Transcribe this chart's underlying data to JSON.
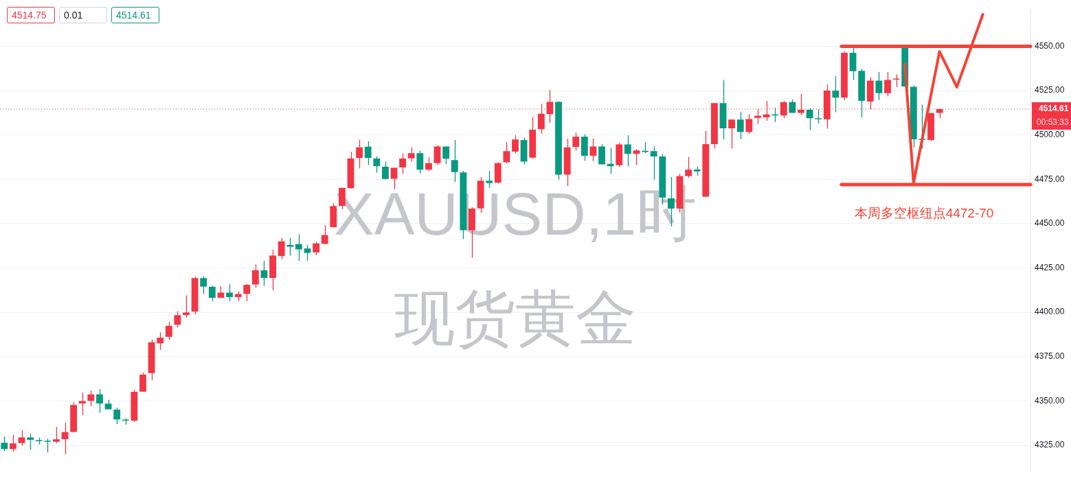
{
  "chart_data": {
    "type": "candlestick",
    "title": "XAUUSD,1时",
    "subtitle": "现货黄金",
    "categories": [
      null,
      null,
      null,
      null,
      null,
      null,
      null,
      null,
      null,
      null,
      null,
      null,
      null,
      null,
      null,
      null,
      null,
      null,
      null,
      null,
      null,
      null,
      null,
      null,
      null,
      null,
      null,
      null,
      null,
      null,
      null,
      null,
      null,
      null,
      null,
      null,
      null,
      null,
      null,
      null,
      null,
      null,
      null,
      null,
      null,
      null,
      null,
      null,
      null,
      null,
      null,
      null,
      null,
      null,
      null,
      null,
      null,
      null,
      null,
      null,
      null,
      null,
      null,
      null,
      null,
      null,
      null,
      null,
      null,
      null,
      null,
      null,
      null,
      null,
      null,
      null,
      null,
      null,
      null,
      null,
      null,
      null,
      null,
      null,
      null,
      null,
      null,
      null,
      null,
      null,
      null,
      null,
      null,
      null,
      null,
      null,
      null,
      null,
      null,
      null,
      null,
      null,
      null,
      null,
      null,
      null,
      null,
      null,
      null,
      null,
      null,
      null,
      null,
      null,
      null,
      null,
      null,
      null,
      null
    ],
    "ohlc": [
      [
        4326.5,
        4330.0,
        4321.8,
        4322.9
      ],
      [
        4322.9,
        4331.0,
        4321.4,
        4326.1
      ],
      [
        4326.3,
        4333.6,
        4324.8,
        4329.5
      ],
      [
        4329.5,
        4331.7,
        4322.5,
        4328.1
      ],
      [
        4327.5,
        4329.5,
        4325.5,
        4327.3
      ],
      [
        4327.2,
        4328.7,
        4321.0,
        4327.0
      ],
      [
        4327.0,
        4335.4,
        4326.2,
        4328.4
      ],
      [
        4328.5,
        4337.7,
        4319.9,
        4332.5
      ],
      [
        4332.6,
        4349.2,
        4332.2,
        4347.7
      ],
      [
        4348.6,
        4354.8,
        4342.1,
        4350.0
      ],
      [
        4350.1,
        4355.9,
        4347.1,
        4353.7
      ],
      [
        4353.7,
        4356.7,
        4343.4,
        4348.6
      ],
      [
        4348.5,
        4350.7,
        4345.3,
        4345.3
      ],
      [
        4345.1,
        4346.2,
        4337.0,
        4339.6
      ],
      [
        4339.3,
        4340.3,
        4336.7,
        4338.9
      ],
      [
        4338.9,
        4356.3,
        4338.2,
        4355.2
      ],
      [
        4355.3,
        4366.0,
        4355.3,
        4364.9
      ],
      [
        4365.7,
        4384.6,
        4361.6,
        4383.1
      ],
      [
        4382.5,
        4388.7,
        4378.8,
        4385.7
      ],
      [
        4386.2,
        4394.7,
        4384.4,
        4392.4
      ],
      [
        4393.0,
        4400.6,
        4391.5,
        4398.4
      ],
      [
        4398.5,
        4409.6,
        4397.0,
        4399.9
      ],
      [
        4400.4,
        4420.0,
        4398.9,
        4419.3
      ],
      [
        4419.3,
        4420.4,
        4410.4,
        4414.5
      ],
      [
        4414.4,
        4414.8,
        4406.3,
        4408.2
      ],
      [
        4408.2,
        4414.8,
        4408.2,
        4411.1
      ],
      [
        4411.1,
        4415.9,
        4406.3,
        4408.6
      ],
      [
        4408.6,
        4411.8,
        4406.3,
        4410.3
      ],
      [
        4410.4,
        4415.9,
        4406.3,
        4415.5
      ],
      [
        4415.7,
        4427.1,
        4413.8,
        4423.7
      ],
      [
        4423.7,
        4429.0,
        4414.9,
        4419.4
      ],
      [
        4419.4,
        4435.3,
        4412.3,
        4432.0
      ],
      [
        4431.7,
        4442.0,
        4430.0,
        4440.0
      ],
      [
        4438.0,
        4442.0,
        4432.0,
        4437.0
      ],
      [
        4438.5,
        4444.0,
        4429.0,
        4435.5
      ],
      [
        4436.0,
        4438.0,
        4429.0,
        4433.5
      ],
      [
        4433.8,
        4439.7,
        4432.1,
        4438.9
      ],
      [
        4438.6,
        4449.1,
        4438.3,
        4443.6
      ],
      [
        4448.0,
        4461.5,
        4447.8,
        4459.9
      ],
      [
        4460.0,
        4470.2,
        4458.2,
        4470.2
      ],
      [
        4470.0,
        4490.5,
        4469.7,
        4486.7
      ],
      [
        4487.0,
        4497.4,
        4481.2,
        4493.0
      ],
      [
        4493.4,
        4496.4,
        4483.0,
        4487.0
      ],
      [
        4486.7,
        4488.0,
        4478.7,
        4482.4
      ],
      [
        4482.1,
        4485.1,
        4474.9,
        4475.2
      ],
      [
        4475.3,
        4481.5,
        4469.3,
        4481.5
      ],
      [
        4481.7,
        4489.7,
        4478.3,
        4486.7
      ],
      [
        4486.8,
        4493.0,
        4484.9,
        4489.7
      ],
      [
        4489.7,
        4491.2,
        4478.3,
        4480.4
      ],
      [
        4480.4,
        4487.4,
        4479.5,
        4484.1
      ],
      [
        4484.1,
        4494.3,
        4483.0,
        4493.5
      ],
      [
        4493.5,
        4493.5,
        4483.6,
        4486.6
      ],
      [
        4485.9,
        4497.2,
        4473.5,
        4479.1
      ],
      [
        4478.9,
        4479.8,
        4441.5,
        4446.3
      ],
      [
        4446.3,
        4459.3,
        4430.8,
        4458.5
      ],
      [
        4458.6,
        4476.3,
        4456.0,
        4474.2
      ],
      [
        4474.2,
        4479.6,
        4470.2,
        4472.9
      ],
      [
        4473.1,
        4484.7,
        4472.6,
        4484.1
      ],
      [
        4484.6,
        4496.1,
        4484.1,
        4490.9
      ],
      [
        4490.6,
        4499.8,
        4489.6,
        4497.5
      ],
      [
        4497.2,
        4498.5,
        4483.4,
        4485.0
      ],
      [
        4487.2,
        4510.1,
        4486.7,
        4503.0
      ],
      [
        4503.3,
        4517.5,
        4500.7,
        4512.0
      ],
      [
        4511.8,
        4525.5,
        4506.9,
        4518.7
      ],
      [
        4518.7,
        4519.0,
        4474.9,
        4477.6
      ],
      [
        4477.6,
        4497.8,
        4471.3,
        4493.0
      ],
      [
        4493.2,
        4501.3,
        4491.1,
        4499.0
      ],
      [
        4499.0,
        4500.4,
        4485.4,
        4488.3
      ],
      [
        4488.3,
        4497.9,
        4485.4,
        4493.5
      ],
      [
        4493.5,
        4494.8,
        4483.4,
        4483.4
      ],
      [
        4483.7,
        4492.7,
        4478.1,
        4482.4
      ],
      [
        4483.0,
        4495.6,
        4482.0,
        4494.7
      ],
      [
        4494.7,
        4499.8,
        4482.4,
        4489.3
      ],
      [
        4489.3,
        4491.9,
        4483.0,
        4491.3
      ],
      [
        4491.1,
        4495.9,
        4489.8,
        4490.4
      ],
      [
        4490.9,
        4493.5,
        4474.9,
        4487.9
      ],
      [
        4487.9,
        4489.2,
        4460.8,
        4464.7
      ],
      [
        4464.3,
        4476.3,
        4448.4,
        4458.5
      ],
      [
        4458.5,
        4478.1,
        4456.3,
        4476.8
      ],
      [
        4476.8,
        4487.6,
        4475.9,
        4480.4
      ],
      [
        4480.5,
        4482.2,
        4477.1,
        4479.5
      ],
      [
        4465.2,
        4502.3,
        4465.2,
        4494.9
      ],
      [
        4494.9,
        4518.0,
        4492.4,
        4518.0
      ],
      [
        4518.0,
        4531.0,
        4497.6,
        4503.8
      ],
      [
        4503.8,
        4508.7,
        4492.4,
        4508.7
      ],
      [
        4508.7,
        4513.1,
        4497.6,
        4501.7
      ],
      [
        4501.7,
        4511.7,
        4500.6,
        4509.0
      ],
      [
        4509.7,
        4514.5,
        4506.2,
        4510.8
      ],
      [
        4509.9,
        4519.1,
        4508.0,
        4511.6
      ],
      [
        4511.6,
        4515.4,
        4507.3,
        4511.0
      ],
      [
        4511.0,
        4519.2,
        4509.4,
        4518.5
      ],
      [
        4518.6,
        4520.1,
        4512.5,
        4512.5
      ],
      [
        4512.5,
        4523.2,
        4511.3,
        4514.2
      ],
      [
        4514.2,
        4515.0,
        4502.8,
        4509.5
      ],
      [
        4509.3,
        4514.5,
        4506.5,
        4508.9
      ],
      [
        4508.8,
        4528.4,
        4503.6,
        4525.0
      ],
      [
        4525.0,
        4533.2,
        4512.9,
        4521.1
      ],
      [
        4521.1,
        4547.0,
        4519.6,
        4546.3
      ],
      [
        4546.3,
        4549.1,
        4531.0,
        4536.0
      ],
      [
        4536.2,
        4537.3,
        4509.9,
        4519.2
      ],
      [
        4518.8,
        4532.5,
        4514.4,
        4530.6
      ],
      [
        4530.6,
        4535.5,
        4519.8,
        4523.6
      ],
      [
        4523.6,
        4535.5,
        4521.8,
        4531.0
      ],
      [
        4531.2,
        4534.2,
        4527.0,
        4531.7
      ],
      [
        4549.1,
        4550.0,
        4527.0,
        4527.4
      ],
      [
        4527.2,
        4527.7,
        4493.0,
        4497.6
      ],
      [
        4497.4,
        4517.2,
        4492.4,
        4497.3
      ],
      [
        4497.2,
        4512.4,
        4496.5,
        4512.4
      ],
      [
        4512.5,
        4515.0,
        4509.4,
        4514.6
      ],
      null,
      null,
      null,
      null,
      null,
      null,
      null,
      null,
      null,
      null
    ],
    "colors": [
      "#089981",
      "#f23645",
      "#f23645",
      "#089981",
      "#089981",
      "#089981",
      "#f23645",
      "#f23645",
      "#f23645",
      "#f23645",
      "#f23645",
      "#089981",
      "#089981",
      "#089981",
      "#089981",
      "#f23645",
      "#f23645",
      "#f23645",
      "#f23645",
      "#f23645",
      "#f23645",
      "#f23645",
      "#f23645",
      "#089981",
      "#089981",
      "#f23645",
      "#089981",
      "#f23645",
      "#f23645",
      "#f23645",
      "#089981",
      "#f23645",
      "#f23645",
      "#089981",
      "#089981",
      "#089981",
      "#f23645",
      "#f23645",
      "#f23645",
      "#f23645",
      "#f23645",
      "#f23645",
      "#089981",
      "#089981",
      "#089981",
      "#f23645",
      "#f23645",
      "#f23645",
      "#089981",
      "#f23645",
      "#f23645",
      "#089981",
      "#089981",
      "#089981",
      "#f23645",
      "#f23645",
      "#089981",
      "#f23645",
      "#f23645",
      "#f23645",
      "#089981",
      "#f23645",
      "#f23645",
      "#f23645",
      "#089981",
      "#f23645",
      "#f23645",
      "#089981",
      "#f23645",
      "#089981",
      "#089981",
      "#f23645",
      "#089981",
      "#f23645",
      "#089981",
      "#089981",
      "#089981",
      "#089981",
      "#f23645",
      "#f23645",
      "#089981",
      "#f23645",
      "#f23645",
      "#089981",
      "#f23645",
      "#089981",
      "#f23645",
      "#f23645",
      "#f23645",
      "#089981",
      "#f23645",
      "#089981",
      "#f23645",
      "#089981",
      "#089981",
      "#f23645",
      "#089981",
      "#f23645",
      "#089981",
      "#089981",
      "#f23645",
      "#089981",
      "#f23645",
      "#f23645",
      "#089981",
      "#089981",
      "#089981",
      "#f23645",
      "#f23645",
      null,
      null,
      null,
      null,
      null,
      null,
      null,
      null,
      null,
      null
    ],
    "series": [
      {
        "type": "line",
        "color": "#f44336",
        "values": [
          null,
          null,
          null,
          null,
          null,
          null,
          null,
          null,
          null,
          null,
          null,
          null,
          null,
          null,
          null,
          null,
          null,
          null,
          null,
          null,
          null,
          null,
          null,
          null,
          null,
          null,
          null,
          null,
          null,
          null,
          null,
          null,
          null,
          null,
          null,
          null,
          null,
          null,
          null,
          null,
          null,
          null,
          null,
          null,
          null,
          null,
          null,
          null,
          null,
          null,
          null,
          null,
          null,
          null,
          null,
          null,
          null,
          null,
          null,
          null,
          null,
          null,
          null,
          null,
          null,
          null,
          null,
          null,
          null,
          null,
          null,
          null,
          null,
          null,
          null,
          null,
          null,
          null,
          null,
          null,
          null,
          null,
          null,
          null,
          null,
          null,
          null,
          null,
          null,
          null,
          null,
          null,
          null,
          null,
          null,
          null,
          null,
          null,
          null,
          null,
          null,
          null,
          null,
          null,
          4540,
          4473,
          null,
          null,
          4547,
          null,
          4527,
          null,
          null,
          4568,
          null,
          null,
          null,
          null,
          null
        ]
      }
    ],
    "ylim": [
      4310,
      4571
    ],
    "yticks": [
      {
        "value": 4325,
        "label": "4325.00"
      },
      {
        "value": 4350,
        "label": "4350.00"
      },
      {
        "value": 4375,
        "label": "4375.00"
      },
      {
        "value": 4400,
        "label": "4400.00"
      },
      {
        "value": 4425,
        "label": "4425.00"
      },
      {
        "value": 4450,
        "label": "4450.00"
      },
      {
        "value": 4475,
        "label": "4475.00"
      },
      {
        "value": 4500,
        "label": "4500.00"
      },
      {
        "value": 4525,
        "label": "4525.00"
      },
      {
        "value": 4550,
        "label": "4550.00"
      }
    ],
    "grid": "y",
    "tick_labels": "y",
    "ref_lines": [
      {
        "axis": "y",
        "value": 4550,
        "color": "#f44336",
        "line_style": "solid"
      },
      {
        "axis": "y",
        "value": 4472,
        "color": "#f44336",
        "line_style": "solid",
        "label": "本周多空枢纽点4472-70"
      },
      {
        "axis": "y",
        "value": 4514.61,
        "color": "#f23645",
        "line_style": "dotted",
        "label": "4514.61"
      }
    ],
    "annotations": [
      "4514.75",
      "0.01",
      "4514.61",
      "00:53:33"
    ]
  }
}
